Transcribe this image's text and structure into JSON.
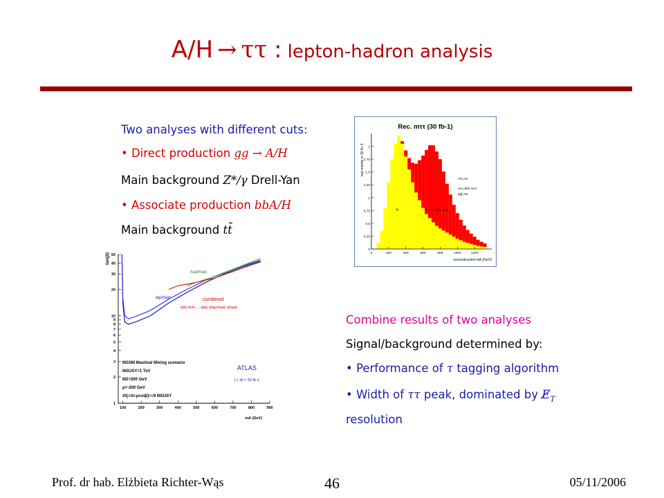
{
  "slide": {
    "title": {
      "part1": "A/H",
      "arrow": "→",
      "part2": "ττ",
      "colon": ":",
      "part3": "lepton-hadron analysis"
    },
    "left_text": {
      "heading": "Two analyses with different cuts:",
      "bullet1_prefix": "• Direct production",
      "bullet1_math": "gg → A/H",
      "bg1_prefix": "Main background",
      "bg1_math": "Z*/γ",
      "bg1_suffix": "Drell-Yan",
      "bullet2_prefix": "• Associate production",
      "bullet2_math": "bbA/H",
      "bg2_prefix": "Main background",
      "bg2_math": "tt̄"
    },
    "right_text": {
      "line1": "Combine results of two analyses",
      "line2": "Signal/background determined by:",
      "line3_prefix": "• Performance of",
      "line3_math": "τ",
      "line3_suffix": "tagging algorithm",
      "line4_prefix": "• Width of",
      "line4_math": "ττ",
      "line4_mid": "peak, dominated by",
      "line4_math2": "E̸",
      "line4_sub": "T",
      "line5": "resolution"
    },
    "footer": {
      "author": "Prof. dr hab. Elżbieta Richter-Wąs",
      "page": "46",
      "date": "05/11/2006"
    }
  },
  "chart_data": [
    {
      "type": "bar",
      "title": "Rec. mττ  (30 fb-1)",
      "xlabel": "reconstructed mA (GeV)",
      "ylabel": "exp events in 30 fb−1",
      "xlim": [
        0,
        1400
      ],
      "ylim": [
        0,
        2.25
      ],
      "xticks": [
        "0",
        "200",
        "400",
        "600",
        "800",
        "1000",
        "1200"
      ],
      "yticks": [
        "0",
        "0.25",
        "0.5",
        "0.75",
        "1",
        "1.25",
        "1.5",
        "1.75",
        "2"
      ],
      "annotations": [
        "ATLAS",
        "mA=800 GeV",
        "tgβ=45",
        "tt",
        "A→ττ→lep/ had"
      ],
      "series": [
        {
          "name": "tt",
          "color": "#ffff00",
          "bin_width": 40,
          "x": [
            80,
            120,
            160,
            200,
            240,
            280,
            320,
            360,
            400,
            440,
            480,
            520,
            560,
            600,
            640,
            680,
            720,
            760,
            800,
            840,
            880,
            920,
            960,
            1000,
            1040,
            1080,
            1120,
            1160,
            1200,
            1240,
            1280,
            1320
          ],
          "values": [
            0.12,
            0.35,
            0.8,
            1.3,
            1.75,
            2.05,
            2.2,
            2.05,
            1.8,
            1.55,
            1.3,
            1.1,
            0.95,
            0.8,
            0.68,
            0.6,
            0.52,
            0.45,
            0.4,
            0.36,
            0.32,
            0.28,
            0.24,
            0.2,
            0.17,
            0.14,
            0.12,
            0.1,
            0.08,
            0.06,
            0.05,
            0.04
          ]
        },
        {
          "name": "A→ττ→lep/ had",
          "color": "#ff0000",
          "bin_width": 40,
          "x": [
            360,
            400,
            440,
            480,
            520,
            560,
            600,
            640,
            680,
            720,
            760,
            800,
            840,
            880,
            920,
            960,
            1000,
            1040,
            1080,
            1120,
            1160,
            1200,
            1240,
            1280,
            1320
          ],
          "values": [
            0.05,
            0.12,
            0.22,
            0.38,
            0.56,
            0.78,
            1.02,
            1.25,
            1.42,
            1.5,
            1.45,
            1.35,
            1.15,
            0.95,
            0.78,
            0.62,
            0.5,
            0.4,
            0.32,
            0.25,
            0.2,
            0.16,
            0.12,
            0.09,
            0.07
          ]
        }
      ]
    },
    {
      "type": "line",
      "xlabel": "mA (GeV)",
      "ylabel": "tan(β)",
      "xlim": [
        75,
        900
      ],
      "ylim": [
        1,
        50
      ],
      "yscale": "log",
      "xticks": [
        "100",
        "200",
        "300",
        "400",
        "500",
        "600",
        "700",
        "800",
        "900"
      ],
      "yticks": [
        "1",
        "2",
        "3",
        "4",
        "5",
        "6",
        "7",
        "8",
        "9",
        "10",
        "20",
        "30",
        "40",
        "50"
      ],
      "annotations": [
        "had/had",
        "lep/had",
        "combined",
        "(bb) A/H → (bb) τ(lep/had) τ(had)",
        "ATLAS",
        "∫ L dt = 30 fb-1"
      ],
      "legend_box": [
        "MSSM Maximal Mixing scenario",
        "MSUSY=1 TeV",
        "M2=200 GeV",
        "μ=-200 GeV",
        "Xt(≡At-μcotβ)=√6 MSUSY"
      ],
      "series": [
        {
          "name": "combined",
          "color": "#1a1a99",
          "x": [
            95,
            100,
            110,
            130,
            170,
            250,
            350,
            450,
            550,
            650,
            750,
            850
          ],
          "y": [
            50,
            14,
            8.5,
            8,
            8.5,
            10,
            14,
            18.5,
            24,
            30,
            36,
            42
          ]
        },
        {
          "name": "lep/had",
          "color": "#3333ff",
          "x": [
            95,
            100,
            110,
            130,
            170,
            250,
            350,
            450,
            550,
            650,
            750,
            850
          ],
          "y": [
            50,
            16,
            10,
            9.2,
            9.8,
            11.5,
            15.5,
            20,
            25.5,
            31,
            37,
            43
          ]
        },
        {
          "name": "had/had",
          "color": "#33aa33",
          "x": [
            450,
            500,
            600,
            700,
            800,
            850
          ],
          "y": [
            22,
            24,
            28,
            34,
            41,
            45
          ]
        },
        {
          "name": "(bb) A/H → (bb) τ(lep/had) τ(had)",
          "color": "#dd2222",
          "x": [
            350,
            400,
            500,
            600,
            700,
            800,
            850
          ],
          "y": [
            20,
            22,
            24,
            27,
            32,
            38,
            41
          ]
        }
      ]
    }
  ]
}
